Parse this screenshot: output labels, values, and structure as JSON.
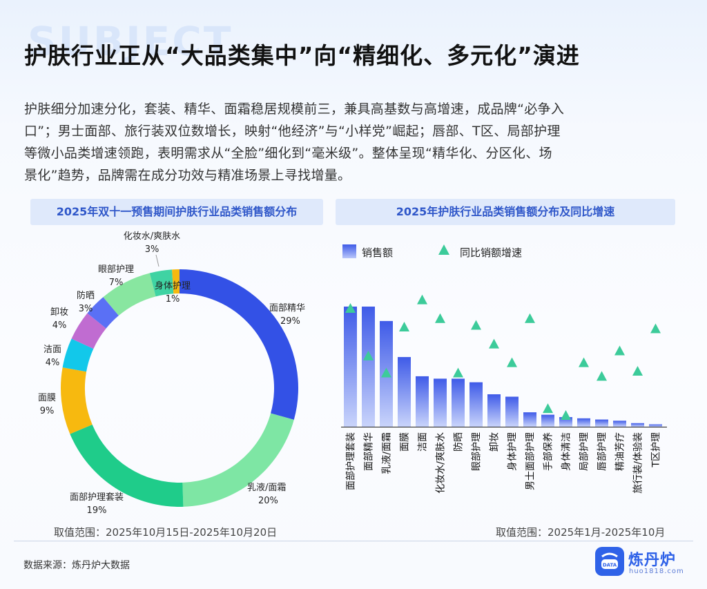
{
  "header": {
    "title": "护肤行业正从“大品类集中”向“精细化、多元化”演进",
    "watermark_word": "SUBJECT",
    "intro_lines": [
      "护肤细分加速分化，套装、精华、面霜稳居规模前三，兼具高基数与高增速，成品牌“必争入",
      "口”；男士面部、旅行装双位数增长，映射“他经济”与“小样党”崛起；唇部、T区、局部护理",
      "等微小品类增速领跑，表明需求从“全脸”细化到“毫米级”。整体呈现“精华化、分区化、场",
      "景化”趋势，品牌需在成分功效与精准场景上寻找增量。"
    ]
  },
  "left_panel": {
    "heading": "2025年双十一预售期间护肤行业品类销售额分布",
    "range_note": "取值范围：2025年10月15日-2025年10月20日"
  },
  "right_panel": {
    "heading": "2025年护肤行业品类销售额分布及同比增速",
    "range_note": "取值范围：2025年1月-2025年10月"
  },
  "footer": {
    "source": "数据来源：炼丹炉大数据",
    "logo_name": "炼丹炉",
    "logo_url_text": "huo1818.com",
    "logo_icon_text": "DATA"
  },
  "chart_data": [
    {
      "type": "pie",
      "variant": "donut",
      "title": "2025年双十一预售期间护肤行业品类销售额分布",
      "slices": [
        {
          "label": "面部精华",
          "value": 29,
          "pct_label": "29%",
          "color": "#3351e6"
        },
        {
          "label": "乳液/面霜",
          "value": 20,
          "pct_label": "20%",
          "color": "#7ee6a4"
        },
        {
          "label": "面部护理套装",
          "value": 19,
          "pct_label": "19%",
          "color": "#1fcc8a"
        },
        {
          "label": "面膜",
          "value": 9,
          "pct_label": "9%",
          "color": "#f7b90f"
        },
        {
          "label": "洁面",
          "value": 4,
          "pct_label": "4%",
          "color": "#12c8ea"
        },
        {
          "label": "卸妆",
          "value": 4,
          "pct_label": "4%",
          "color": "#c06cd1"
        },
        {
          "label": "防晒",
          "value": 3,
          "pct_label": "3%",
          "color": "#5a70f5"
        },
        {
          "label": "眼部护理",
          "value": 7,
          "pct_label": "7%",
          "color": "#88e6a0"
        },
        {
          "label": "化妆水/爽肤水",
          "value": 3,
          "pct_label": "3%",
          "color": "#3fd3a3"
        },
        {
          "label": "身体护理",
          "value": 1,
          "pct_label": "1%",
          "color": "#f7b90f"
        }
      ]
    },
    {
      "type": "bar",
      "title": "2025年护肤行业品类销售额分布及同比增速",
      "legend_position": "top-left",
      "grid": false,
      "categories": [
        "面部护理套装",
        "面部精华",
        "乳液/面霜",
        "面膜",
        "洁面",
        "化妆水/爽肤水",
        "防晒",
        "眼部护理",
        "卸妆",
        "身体护理",
        "男士面部护理",
        "手部保养",
        "身体清洁",
        "局部护理",
        "唇部护理",
        "精油芳疗",
        "旅行装/体验装",
        "T区护理"
      ],
      "series": [
        {
          "name": "销售额",
          "mark": "bar",
          "color": "#3f5be8",
          "values": [
            100,
            100,
            88,
            58,
            42,
            40,
            40,
            37,
            27,
            25,
            12,
            10,
            8,
            7,
            6,
            5,
            3,
            2
          ]
        },
        {
          "name": "同比销额增速",
          "mark": "triangle",
          "color": "#3ccb9a",
          "values": [
            74,
            46,
            36,
            63,
            79,
            68,
            36,
            64,
            53,
            42,
            68,
            15,
            11,
            42,
            34,
            49,
            37,
            62
          ]
        }
      ],
      "note": "Values estimated (relative scale, no axis printed)"
    }
  ]
}
